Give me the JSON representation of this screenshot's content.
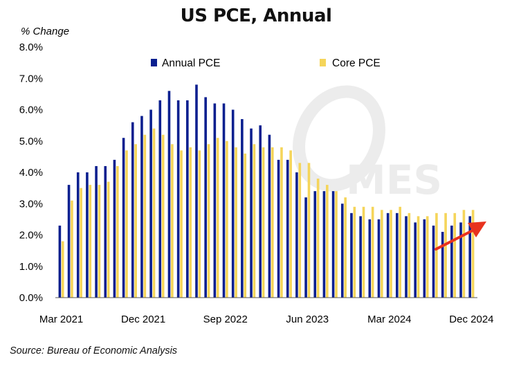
{
  "chart_data": {
    "type": "bar",
    "title": "US PCE, Annual",
    "ylabel": "% Change",
    "xlabel": "",
    "source": "Source: Bureau of Economic Analysis",
    "ylim": [
      0,
      8
    ],
    "yticks": [
      "0.0%",
      "1.0%",
      "2.0%",
      "3.0%",
      "4.0%",
      "5.0%",
      "6.0%",
      "7.0%",
      "8.0%"
    ],
    "x_tick_labels": [
      "Mar 2021",
      "Dec 2021",
      "Sep 2022",
      "Jun 2023",
      "Mar 2024",
      "Dec 2024"
    ],
    "categories": [
      "Mar 2021",
      "Apr 2021",
      "May 2021",
      "Jun 2021",
      "Jul 2021",
      "Aug 2021",
      "Sep 2021",
      "Oct 2021",
      "Nov 2021",
      "Dec 2021",
      "Jan 2022",
      "Feb 2022",
      "Mar 2022",
      "Apr 2022",
      "May 2022",
      "Jun 2022",
      "Jul 2022",
      "Aug 2022",
      "Sep 2022",
      "Oct 2022",
      "Nov 2022",
      "Dec 2022",
      "Jan 2023",
      "Feb 2023",
      "Mar 2023",
      "Apr 2023",
      "May 2023",
      "Jun 2023",
      "Jul 2023",
      "Aug 2023",
      "Sep 2023",
      "Oct 2023",
      "Nov 2023",
      "Dec 2023",
      "Jan 2024",
      "Feb 2024",
      "Mar 2024",
      "Apr 2024",
      "May 2024",
      "Jun 2024",
      "Jul 2024",
      "Aug 2024",
      "Sep 2024",
      "Oct 2024",
      "Nov 2024",
      "Dec 2024"
    ],
    "series": [
      {
        "name": "Annual PCE",
        "color": "#0a1f8f",
        "values": [
          2.3,
          3.6,
          4.0,
          4.0,
          4.2,
          4.2,
          4.4,
          5.1,
          5.6,
          5.8,
          6.0,
          6.3,
          6.6,
          6.3,
          6.3,
          6.8,
          6.4,
          6.2,
          6.2,
          6.0,
          5.7,
          5.4,
          5.5,
          5.2,
          4.4,
          4.4,
          4.0,
          3.2,
          3.4,
          3.4,
          3.4,
          3.0,
          2.7,
          2.6,
          2.5,
          2.5,
          2.7,
          2.7,
          2.6,
          2.4,
          2.5,
          2.3,
          2.1,
          2.3,
          2.4,
          2.6
        ]
      },
      {
        "name": "Core PCE",
        "color": "#f5d55a",
        "values": [
          1.8,
          3.1,
          3.5,
          3.6,
          3.6,
          3.7,
          4.2,
          4.7,
          4.9,
          5.2,
          5.4,
          5.2,
          4.9,
          4.7,
          4.8,
          4.7,
          4.9,
          5.1,
          5.0,
          4.8,
          4.6,
          4.9,
          4.8,
          4.8,
          4.8,
          4.7,
          4.3,
          4.3,
          3.8,
          3.6,
          3.4,
          3.2,
          2.9,
          2.9,
          2.9,
          2.8,
          2.8,
          2.9,
          2.7,
          2.6,
          2.6,
          2.7,
          2.7,
          2.7,
          2.8,
          2.8
        ]
      }
    ],
    "legend_position": "top",
    "grid": false,
    "annotation": {
      "type": "arrow",
      "color": "#e8321e",
      "direction": "up-right"
    }
  }
}
